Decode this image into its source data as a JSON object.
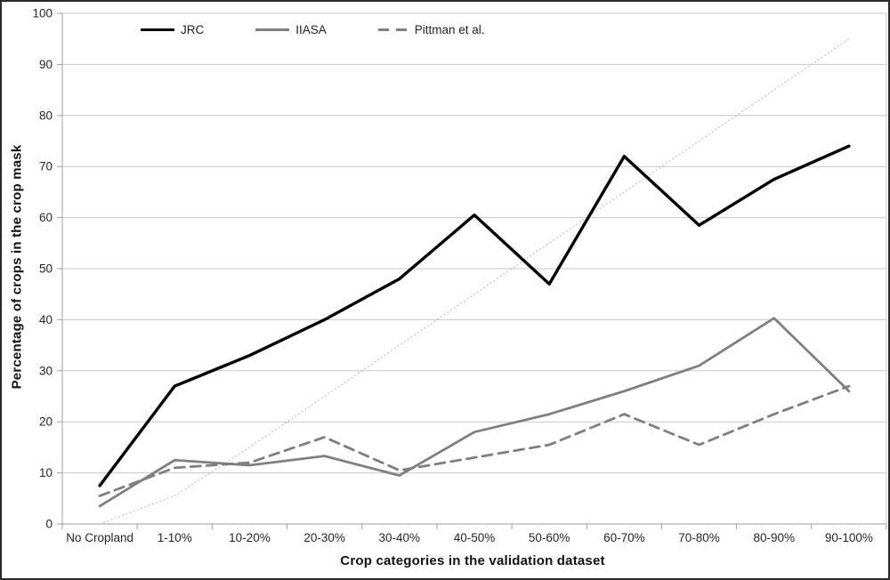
{
  "figure": {
    "y_axis_title": "Percentage of crops in the crop mask",
    "x_axis_title": "Crop categories in the validation dataset"
  },
  "legend": {
    "items": [
      {
        "label": "JRC",
        "slug": "jrc",
        "color": "#000000",
        "style": "solid"
      },
      {
        "label": "IIASA",
        "slug": "iiasa",
        "color": "#808080",
        "style": "solid"
      },
      {
        "label": "Pittman et al.",
        "slug": "pittman-et-al",
        "color": "#7f7f7f",
        "style": "dashed"
      }
    ]
  },
  "chart_data": {
    "type": "line",
    "title": "",
    "xlabel": "Crop categories in the validation dataset",
    "ylabel": "Percentage of crops in the crop mask",
    "ylim": [
      0,
      100
    ],
    "y_ticks": [
      0,
      10,
      20,
      30,
      40,
      50,
      60,
      70,
      80,
      90,
      100
    ],
    "grid": "horizontal",
    "legend_position": "top-inside",
    "categories": [
      "No Cropland",
      "1-10%",
      "10-20%",
      "20-30%",
      "30-40%",
      "40-50%",
      "50-60%",
      "60-70%",
      "70-80%",
      "80-90%",
      "90-100%"
    ],
    "series": [
      {
        "name": "1:1 reference line",
        "slug": "reference",
        "color": "#b3b3b3",
        "style": "dotted",
        "width": 1.3,
        "in_legend": false,
        "values": [
          0,
          5.5,
          15,
          25,
          35,
          45,
          55,
          65,
          75,
          85,
          95
        ]
      },
      {
        "name": "JRC",
        "slug": "jrc",
        "color": "#000000",
        "style": "solid",
        "width": 3.4,
        "in_legend": true,
        "values": [
          7.5,
          27,
          33,
          40,
          48,
          60.5,
          47,
          72,
          58.5,
          67.5,
          74
        ]
      },
      {
        "name": "IIASA",
        "slug": "iiasa",
        "color": "#808080",
        "style": "solid",
        "width": 2.8,
        "in_legend": true,
        "values": [
          3.5,
          12.5,
          11.5,
          13.3,
          9.5,
          18,
          21.5,
          26,
          31,
          40.3,
          26
        ]
      },
      {
        "name": "Pittman et al.",
        "slug": "pittman-et-al",
        "color": "#7f7f7f",
        "style": "dashed",
        "width": 2.8,
        "in_legend": true,
        "values": [
          5.5,
          11,
          12,
          17,
          10.5,
          13,
          15.5,
          21.5,
          15.5,
          21.5,
          27
        ]
      }
    ]
  },
  "colors": {
    "background": "#ffffff",
    "border": "#2a2a2a",
    "gridline": "#c8c8c8",
    "axis": "#9e9e9e",
    "tick_label": "#262626"
  }
}
